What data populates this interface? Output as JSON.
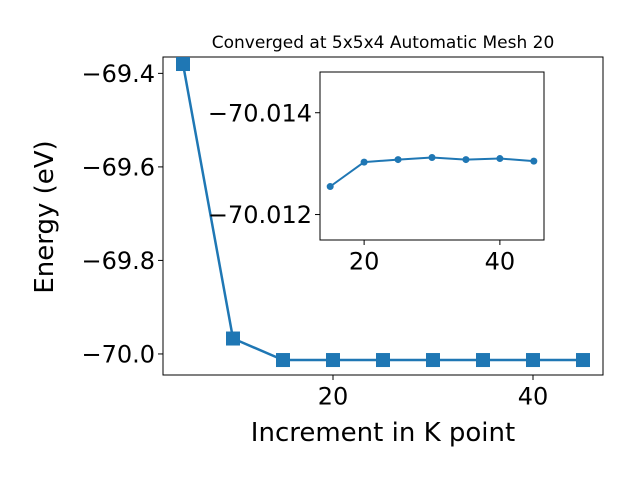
{
  "chart_data": [
    {
      "type": "line",
      "title": "Converged at 5x5x4 Automatic Mesh 20",
      "xlabel": "Increment in K point",
      "ylabel": "Energy (eV)",
      "xlim": [
        3,
        47
      ],
      "ylim": [
        -70.045,
        -69.365
      ],
      "xticks": [
        20,
        40
      ],
      "yticks": [
        -69.4,
        -69.6,
        -69.8,
        -70.0
      ],
      "ytick_labels": [
        "−69.4",
        "−69.6",
        "−69.8",
        "−70.0"
      ],
      "grid": false,
      "marker": "square",
      "color": "#1f77b4",
      "series": [
        {
          "x": [
            5,
            10,
            15,
            20,
            25,
            30,
            35,
            40,
            45
          ],
          "y": [
            -69.38,
            -69.967,
            -70.013,
            -70.013,
            -70.013,
            -70.013,
            -70.013,
            -70.013,
            -70.013
          ]
        }
      ]
    },
    {
      "type": "line",
      "role": "inset",
      "xlim": [
        13.5,
        46.5
      ],
      "ylim": [
        -70.0115,
        -70.0148
      ],
      "xticks": [
        20,
        40
      ],
      "yticks": [
        -70.014,
        -70.012
      ],
      "ytick_labels": [
        "−70.014",
        "−70.012"
      ],
      "grid": false,
      "marker": "circle",
      "color": "#1f77b4",
      "series": [
        {
          "x": [
            15,
            20,
            25,
            30,
            35,
            40,
            45
          ],
          "y": [
            -70.01255,
            -70.01303,
            -70.01308,
            -70.01312,
            -70.01308,
            -70.0131,
            -70.01305
          ]
        }
      ]
    }
  ]
}
